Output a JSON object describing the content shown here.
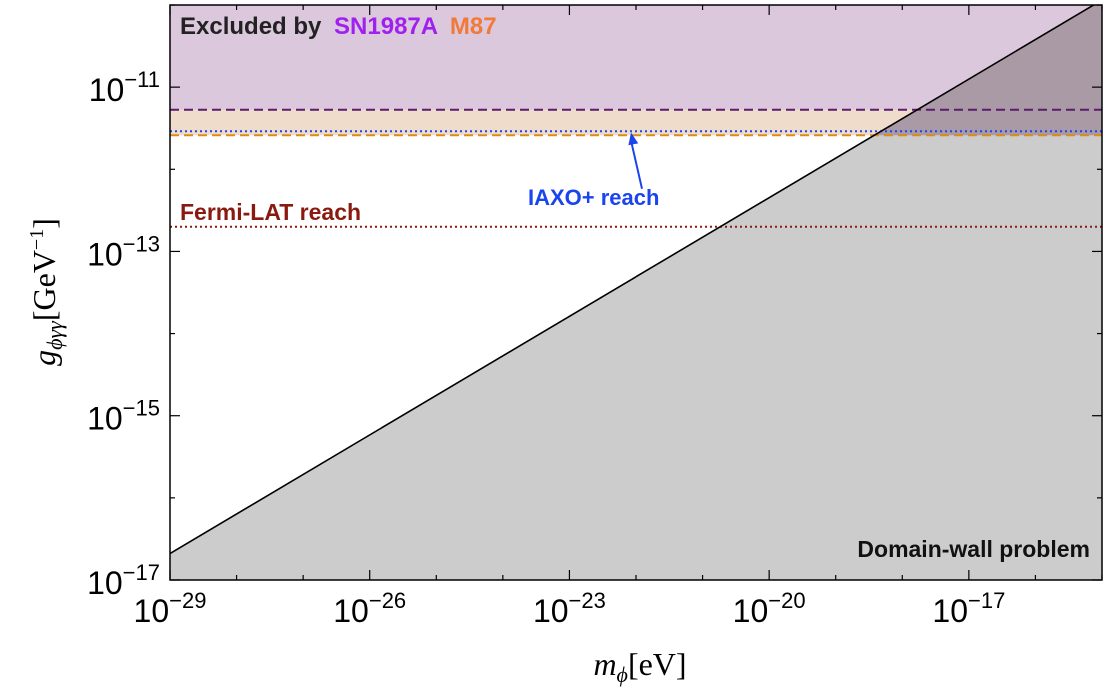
{
  "chart_data": {
    "type": "line",
    "xscale": "log",
    "yscale": "log",
    "xlim": [
      1e-29,
      1e-15
    ],
    "ylim": [
      1e-17,
      1e-10
    ],
    "xlabel": {
      "math": "m",
      "sub": "ϕ",
      "unit": "[eV]"
    },
    "ylabel": {
      "math": "g",
      "sub": "ϕγγ",
      "unit_open": "[GeV",
      "unit_exp": "−1",
      "unit_close": "]"
    },
    "xticks": [
      {
        "value": 1e-29,
        "base": "10",
        "exp": "−29"
      },
      {
        "value": 1e-26,
        "base": "10",
        "exp": "−26"
      },
      {
        "value": 1e-23,
        "base": "10",
        "exp": "−23"
      },
      {
        "value": 1e-20,
        "base": "10",
        "exp": "−20"
      },
      {
        "value": 1e-17,
        "base": "10",
        "exp": "−17"
      }
    ],
    "yticks": [
      {
        "value": 1e-17,
        "base": "10",
        "exp": "−17"
      },
      {
        "value": 1e-15,
        "base": "10",
        "exp": "−15"
      },
      {
        "value": 1e-13,
        "base": "10",
        "exp": "−13"
      },
      {
        "value": 1e-11,
        "base": "10",
        "exp": "−11"
      }
    ],
    "regions": {
      "domain_wall": {
        "label": "Domain-wall problem",
        "fill": "#cccccc",
        "line_points": [
          [
            1e-29,
            2.1e-17
          ],
          [
            1e-15,
            1.15e-10
          ]
        ]
      },
      "sn1987a": {
        "label": "SN1987A",
        "color": "#a020f0",
        "fill": "#dcc8dc",
        "bound": 5.3e-12,
        "line_color": "#5a1a6e"
      },
      "m87": {
        "label": "M87",
        "color": "#f07a3a",
        "fill": "#f0dccb",
        "bound": 2.6e-12,
        "line_color": "#e08a10"
      }
    },
    "excluded_prefix": "Excluded by",
    "reach_lines": [
      {
        "name": "IAXO+ reach",
        "value": 2.9e-12,
        "color": "#1a44f0"
      },
      {
        "name": "Fermi-LAT reach",
        "value": 2e-13,
        "color": "#8a1a10"
      }
    ],
    "arrow": {
      "from": [
        1e-22,
        5.8e-13
      ],
      "to": [
        1e-22,
        2.8e-12
      ],
      "color": "#1a44f0"
    }
  }
}
